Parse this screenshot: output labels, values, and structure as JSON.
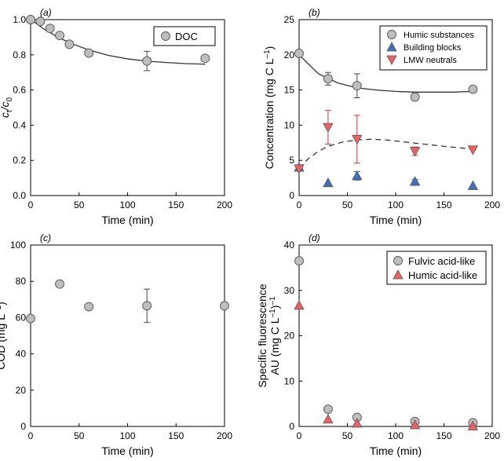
{
  "chart_data": [
    {
      "type": "scatter",
      "panel_label": "(a)",
      "ylabel_main": "c",
      "ylabel_sub1": "t",
      "ylabel_sep": "/c",
      "ylabel_sub2": "0",
      "xlabel": "Time (min)",
      "xlim": [
        0,
        200
      ],
      "ylim": [
        0,
        1.0
      ],
      "xticks": [
        "0",
        "50",
        "100",
        "150",
        "200"
      ],
      "yticks": [
        "0.0",
        "0.2",
        "0.4",
        "0.6",
        "0.8",
        "1.0"
      ],
      "legend": "top-right",
      "series": [
        {
          "name": "DOC",
          "color": "#bdbdbd",
          "x": [
            0,
            10,
            20,
            30,
            40,
            60,
            120,
            180
          ],
          "y": [
            1.0,
            0.99,
            0.95,
            0.91,
            0.86,
            0.81,
            0.765,
            0.78
          ],
          "err": [
            0,
            0,
            0,
            0,
            0,
            0,
            0.055,
            0
          ]
        }
      ],
      "fit": {
        "x": [
          0,
          15,
          30,
          45,
          60,
          80,
          100,
          120,
          140,
          160,
          180
        ],
        "y": [
          1.0,
          0.942,
          0.895,
          0.858,
          0.828,
          0.797,
          0.777,
          0.764,
          0.756,
          0.75,
          0.747
        ]
      }
    },
    {
      "type": "scatter",
      "panel_label": "(b)",
      "ylabel_main": "Concentration (mg C L",
      "ylabel_sup": "–1",
      "ylabel_end": ")",
      "xlabel": "Time (min)",
      "xlim": [
        0,
        200
      ],
      "ylim": [
        0,
        25
      ],
      "xticks": [
        "0",
        "50",
        "100",
        "150",
        "200"
      ],
      "yticks": [
        "0",
        "5",
        "10",
        "15",
        "20",
        "25"
      ],
      "legend": "top-right",
      "series": [
        {
          "name": "Humic substances",
          "marker": "circle",
          "color": "#bdbdbd",
          "x": [
            0,
            30,
            60,
            120,
            180
          ],
          "y": [
            20.2,
            16.6,
            15.6,
            14.0,
            15.1
          ],
          "err": [
            0,
            0.9,
            1.7,
            0.5,
            0
          ]
        },
        {
          "name": "Building blocks",
          "marker": "triangle-up",
          "color": "#3f6fc0",
          "x": [
            0,
            30,
            60,
            120,
            180
          ],
          "y": [
            4.0,
            1.8,
            2.8,
            2.0,
            1.4
          ],
          "err": [
            0,
            0,
            0.6,
            0.3,
            0
          ]
        },
        {
          "name": "LMW neutrals",
          "marker": "triangle-down",
          "color": "#f06060",
          "x": [
            0,
            30,
            60,
            120,
            180
          ],
          "y": [
            3.8,
            9.7,
            8.0,
            6.3,
            6.5
          ],
          "err": [
            0,
            2.4,
            3.4,
            0.6,
            0
          ]
        }
      ],
      "fits": [
        {
          "series": "Humic substances",
          "style": "solid",
          "x": [
            0,
            20,
            40,
            60,
            80,
            100,
            120,
            140,
            160,
            180
          ],
          "y": [
            20.0,
            17.3,
            16.0,
            15.3,
            15.0,
            14.8,
            14.7,
            14.7,
            14.7,
            14.8
          ]
        },
        {
          "series": "LMW neutrals",
          "style": "dashed",
          "x": [
            0,
            10,
            20,
            30,
            45,
            60,
            75,
            90,
            110,
            130,
            150,
            165,
            180
          ],
          "y": [
            3.9,
            5.3,
            6.3,
            7.0,
            7.6,
            7.9,
            8.0,
            7.9,
            7.6,
            7.3,
            7.0,
            6.8,
            6.6
          ]
        }
      ]
    },
    {
      "type": "scatter",
      "panel_label": "(c)",
      "ylabel_main": "COD (mg L",
      "ylabel_sup": "–1",
      "ylabel_end": ")",
      "xlabel": "Time (min)",
      "xlim": [
        0,
        200
      ],
      "ylim": [
        0,
        100
      ],
      "xticks": [
        "0",
        "50",
        "100",
        "150",
        "200"
      ],
      "yticks": [
        "0",
        "20",
        "40",
        "60",
        "80",
        "100"
      ],
      "series": [
        {
          "name": "COD",
          "color": "#bdbdbd",
          "x": [
            0,
            30,
            60,
            120,
            200
          ],
          "y": [
            59.5,
            78.5,
            66.0,
            66.5,
            66.5
          ],
          "err": [
            0,
            0,
            0,
            9.2,
            0
          ]
        }
      ]
    },
    {
      "type": "scatter",
      "panel_label": "(d)",
      "ylabel_line1": "Specific fluorescence",
      "ylabel_main": "AU (mg C L",
      "ylabel_sup": "–1",
      "ylabel_end": ")",
      "ylabel_sup2": "–1",
      "xlabel": "Time (min)",
      "xlim": [
        0,
        200
      ],
      "ylim": [
        0,
        40
      ],
      "xticks": [
        "0",
        "50",
        "100",
        "150",
        "200"
      ],
      "yticks": [
        "0",
        "10",
        "20",
        "30",
        "40"
      ],
      "legend": "top-right",
      "series": [
        {
          "name": "Fulvic acid-like",
          "marker": "circle",
          "color": "#bdbdbd",
          "x": [
            0,
            30,
            60,
            120,
            180
          ],
          "y": [
            36.5,
            3.8,
            2.0,
            1.1,
            0.8
          ]
        },
        {
          "name": "Humic acid-like",
          "marker": "triangle-up",
          "color": "#f06060",
          "x": [
            0,
            30,
            60,
            120,
            180
          ],
          "y": [
            26.7,
            1.6,
            0.7,
            0.35,
            0.1
          ]
        }
      ]
    }
  ]
}
